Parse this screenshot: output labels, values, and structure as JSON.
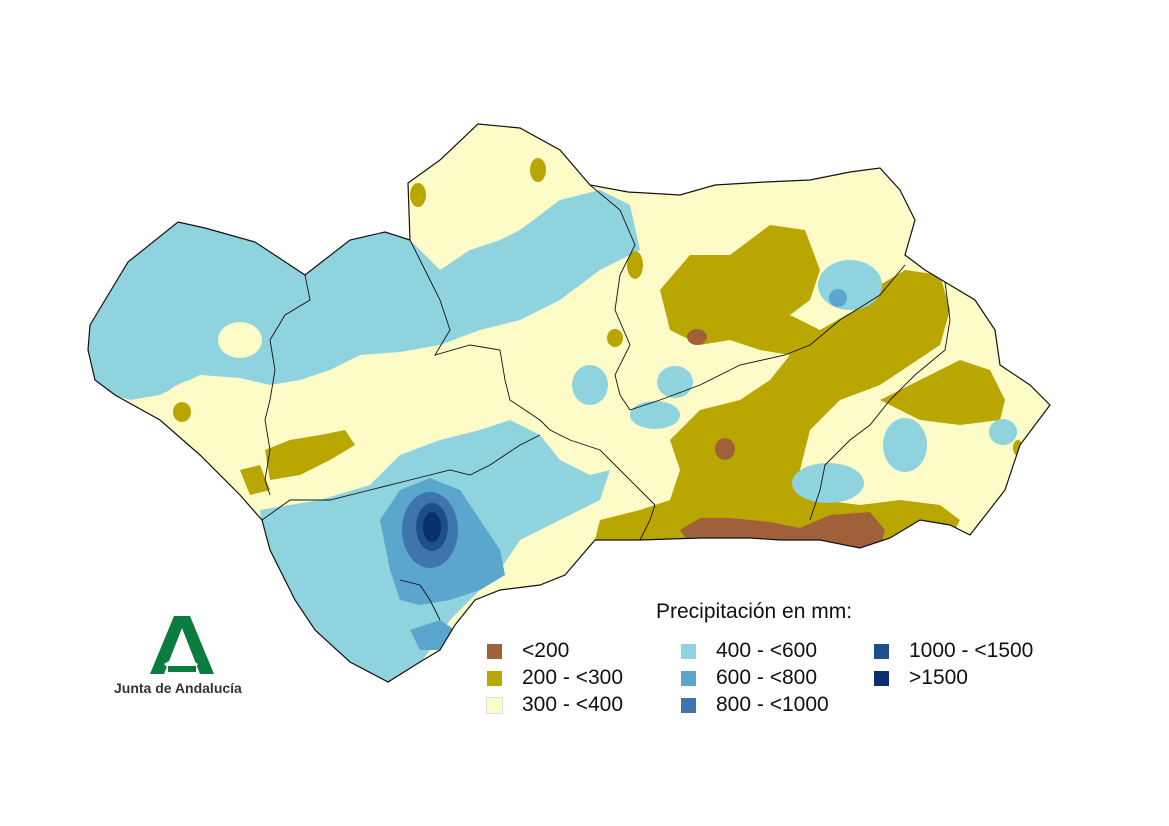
{
  "legend": {
    "title": "Precipitación en mm:",
    "items": [
      {
        "label": "<200",
        "color": "#a0613a"
      },
      {
        "label": "200 - <300",
        "color": "#b9a600"
      },
      {
        "label": "300 - <400",
        "color": "#fdfcc8"
      },
      {
        "label": "400 - <600",
        "color": "#8fd3df"
      },
      {
        "label": "600 - <800",
        "color": "#5ba6cc"
      },
      {
        "label": "800 - <1000",
        "color": "#3c76ad"
      },
      {
        "label": "1000 - <1500",
        "color": "#1d4f8d"
      },
      {
        "label": ">1500",
        "color": "#0b2f6b"
      }
    ]
  },
  "logo": {
    "text": "Junta de Andalucía",
    "color": "#0b7b3e"
  }
}
